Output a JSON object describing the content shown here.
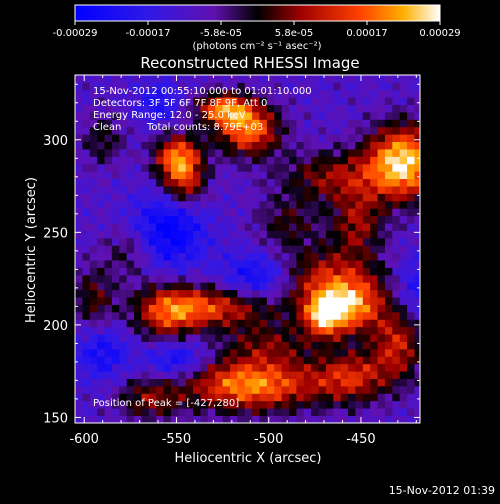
{
  "chart_data": {
    "type": "heatmap",
    "title": "Reconstructed RHESSI Image",
    "colorbar": {
      "ticks": [
        "-0.00029",
        "-0.00017",
        "-5.8e-05",
        "5.8e-05",
        "0.00017",
        "0.00029"
      ],
      "units_label": "(photons cm⁻² s⁻¹ asec⁻²)",
      "range": [
        -0.00029,
        0.00029
      ]
    },
    "xlabel": "Heliocentric X (arcsec)",
    "ylabel": "Heliocentric Y (arcsec)",
    "xlim": [
      -605,
      -418
    ],
    "ylim": [
      147,
      335
    ],
    "xticks": [
      -600,
      -550,
      -500,
      -450
    ],
    "yticks": [
      150,
      200,
      250,
      300
    ],
    "annotations": [
      "15-Nov-2012 00:55:10.000 to 01:01:10.000",
      "Detectors: 3F 5F 6F 7F 8F 9F, Att 0",
      "Energy Range: 12.0 - 25.0 keV",
      "Clean",
      "Total counts: 8.79E+03"
    ],
    "peak_label": "Position of Peak = [-427,280]",
    "peak": [
      -427,
      280
    ],
    "sources": [
      {
        "x": -427,
        "y": 288,
        "sx": 14,
        "sy": 14,
        "amp": 1.0
      },
      {
        "x": -549,
        "y": 290,
        "sx": 9,
        "sy": 9,
        "amp": 0.85
      },
      {
        "x": -511,
        "y": 306,
        "sx": 12,
        "sy": 10,
        "amp": 0.8
      },
      {
        "x": -525,
        "y": 317,
        "sx": 10,
        "sy": 6,
        "amp": 0.7
      },
      {
        "x": -545,
        "y": 275,
        "sx": 8,
        "sy": 8,
        "amp": 0.45
      },
      {
        "x": -465,
        "y": 280,
        "sx": 20,
        "sy": 10,
        "amp": 0.45
      },
      {
        "x": -452,
        "y": 255,
        "sx": 10,
        "sy": 12,
        "amp": 0.45
      },
      {
        "x": -470,
        "y": 225,
        "sx": 22,
        "sy": 12,
        "amp": 0.55
      },
      {
        "x": -455,
        "y": 210,
        "sx": 12,
        "sy": 10,
        "amp": 0.7
      },
      {
        "x": -470,
        "y": 205,
        "sx": 8,
        "sy": 8,
        "amp": 0.75
      },
      {
        "x": -530,
        "y": 210,
        "sx": 24,
        "sy": 8,
        "amp": 0.65
      },
      {
        "x": -555,
        "y": 205,
        "sx": 12,
        "sy": 12,
        "amp": 0.5
      },
      {
        "x": -430,
        "y": 190,
        "sx": 10,
        "sy": 14,
        "amp": 0.55
      },
      {
        "x": -510,
        "y": 168,
        "sx": 26,
        "sy": 10,
        "amp": 0.85
      },
      {
        "x": -455,
        "y": 172,
        "sx": 14,
        "sy": 10,
        "amp": 0.55
      },
      {
        "x": -565,
        "y": 160,
        "sx": 12,
        "sy": 8,
        "amp": 0.4
      },
      {
        "x": -595,
        "y": 215,
        "sx": 8,
        "sy": 12,
        "amp": 0.35
      },
      {
        "x": -590,
        "y": 300,
        "sx": 8,
        "sy": 10,
        "amp": 0.3
      },
      {
        "x": -575,
        "y": 240,
        "sx": 10,
        "sy": 10,
        "amp": 0.3
      },
      {
        "x": -490,
        "y": 255,
        "sx": 12,
        "sy": 10,
        "amp": 0.3
      },
      {
        "x": -500,
        "y": 190,
        "sx": 18,
        "sy": 8,
        "amp": 0.35
      }
    ],
    "negative_regions": [
      {
        "x": -555,
        "y": 250,
        "sx": 14,
        "sy": 14,
        "amp": -0.5
      },
      {
        "x": -505,
        "y": 225,
        "sx": 14,
        "sy": 10,
        "amp": -0.5
      },
      {
        "x": -590,
        "y": 185,
        "sx": 10,
        "sy": 10,
        "amp": -0.35
      },
      {
        "x": -550,
        "y": 182,
        "sx": 12,
        "sy": 8,
        "amp": -0.45
      },
      {
        "x": -420,
        "y": 220,
        "sx": 8,
        "sy": 12,
        "amp": -0.3
      },
      {
        "x": -560,
        "y": 320,
        "sx": 8,
        "sy": 8,
        "amp": -0.3
      }
    ]
  },
  "footer": {
    "timestamp": "15-Nov-2012 01:39"
  }
}
